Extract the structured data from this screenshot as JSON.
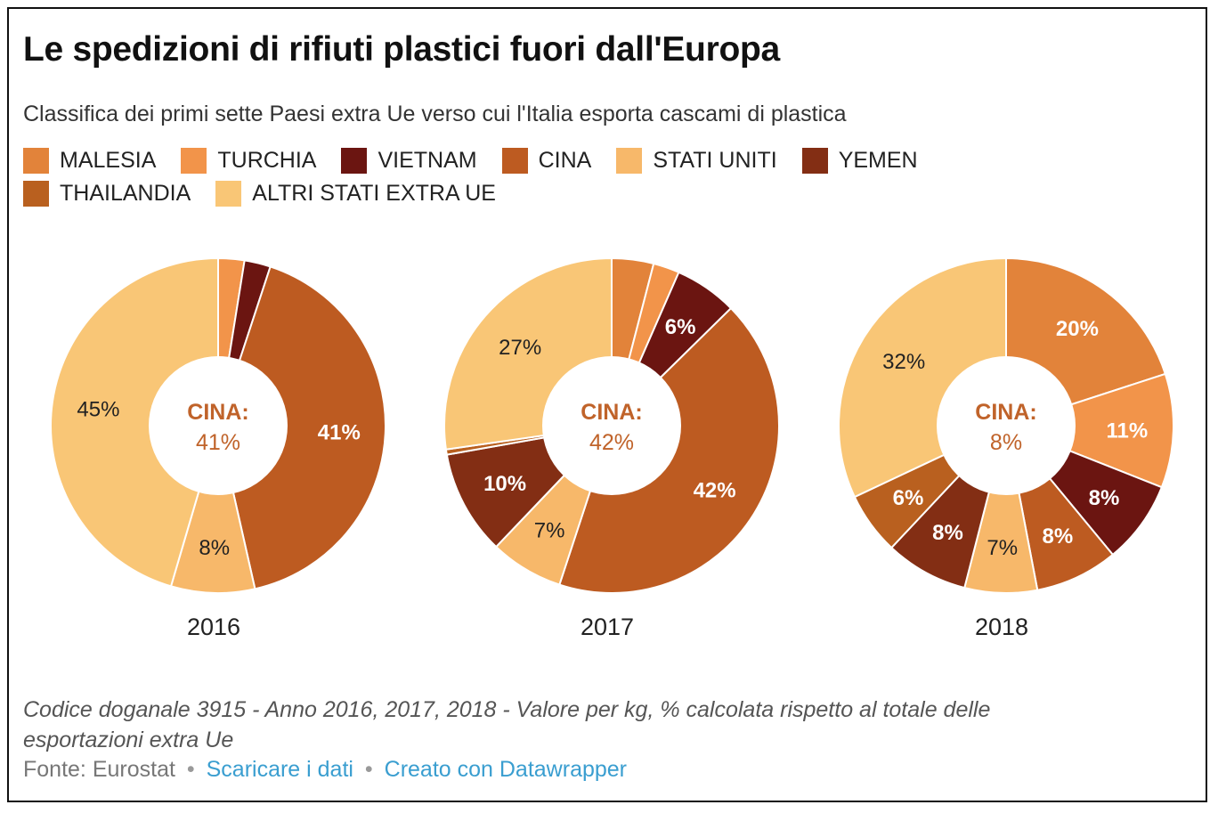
{
  "title": "Le spedizioni di rifiuti plastici fuori dall'Europa",
  "subtitle": "Classifica dei primi sette Paesi extra Ue verso cui l'Italia esporta cascami di plastica",
  "legend": [
    {
      "label": "MALESIA",
      "color": "#e2833a"
    },
    {
      "label": "TURCHIA",
      "color": "#f2944a"
    },
    {
      "label": "VIETNAM",
      "color": "#6b1511"
    },
    {
      "label": "CINA",
      "color": "#bd5b21"
    },
    {
      "label": "STATI UNITI",
      "color": "#f7b86a"
    },
    {
      "label": "YEMEN",
      "color": "#832e14"
    },
    {
      "label": "THAILANDIA",
      "color": "#b9601f"
    },
    {
      "label": "ALTRI STATI EXTRA UE",
      "color": "#f9c676"
    }
  ],
  "chart_data": [
    {
      "type": "pie",
      "year": "2016",
      "center_label": "CINA:",
      "center_value": "41%",
      "slices": [
        {
          "name": "MALESIA",
          "value": 0,
          "label": "",
          "color": "#e2833a"
        },
        {
          "name": "TURCHIA",
          "value": 2.5,
          "label": "",
          "color": "#f2944a"
        },
        {
          "name": "VIETNAM",
          "value": 2.5,
          "label": "",
          "color": "#6b1511"
        },
        {
          "name": "CINA",
          "value": 41,
          "label": "41%",
          "color": "#bd5b21",
          "label_color": "#ffffff"
        },
        {
          "name": "STATI UNITI",
          "value": 8,
          "label": "8%",
          "color": "#f7b86a",
          "label_color": "#222222"
        },
        {
          "name": "YEMEN",
          "value": 0,
          "label": "",
          "color": "#832e14"
        },
        {
          "name": "THAILANDIA",
          "value": 0,
          "label": "",
          "color": "#b9601f"
        },
        {
          "name": "ALTRI STATI EXTRA UE",
          "value": 45,
          "label": "45%",
          "color": "#f9c676",
          "label_color": "#222222"
        }
      ]
    },
    {
      "type": "pie",
      "year": "2017",
      "center_label": "CINA:",
      "center_value": "42%",
      "slices": [
        {
          "name": "MALESIA",
          "value": 4,
          "label": "",
          "color": "#e2833a"
        },
        {
          "name": "TURCHIA",
          "value": 2.5,
          "label": "",
          "color": "#f2944a"
        },
        {
          "name": "VIETNAM",
          "value": 6,
          "label": "6%",
          "color": "#6b1511",
          "label_color": "#ffffff"
        },
        {
          "name": "CINA",
          "value": 42,
          "label": "42%",
          "color": "#bd5b21",
          "label_color": "#ffffff"
        },
        {
          "name": "STATI UNITI",
          "value": 7,
          "label": "7%",
          "color": "#f7b86a",
          "label_color": "#222222"
        },
        {
          "name": "YEMEN",
          "value": 10,
          "label": "10%",
          "color": "#832e14",
          "label_color": "#ffffff"
        },
        {
          "name": "THAILANDIA",
          "value": 0.5,
          "label": "",
          "color": "#b9601f"
        },
        {
          "name": "ALTRI STATI EXTRA UE",
          "value": 27,
          "label": "27%",
          "color": "#f9c676",
          "label_color": "#222222"
        }
      ]
    },
    {
      "type": "pie",
      "year": "2018",
      "center_label": "CINA:",
      "center_value": "8%",
      "slices": [
        {
          "name": "MALESIA",
          "value": 20,
          "label": "20%",
          "color": "#e2833a",
          "label_color": "#ffffff"
        },
        {
          "name": "TURCHIA",
          "value": 11,
          "label": "11%",
          "color": "#f2944a",
          "label_color": "#ffffff"
        },
        {
          "name": "VIETNAM",
          "value": 8,
          "label": "8%",
          "color": "#6b1511",
          "label_color": "#ffffff"
        },
        {
          "name": "CINA",
          "value": 8,
          "label": "8%",
          "color": "#bd5b21",
          "label_color": "#ffffff"
        },
        {
          "name": "STATI UNITI",
          "value": 7,
          "label": "7%",
          "color": "#f7b86a",
          "label_color": "#222222"
        },
        {
          "name": "YEMEN",
          "value": 8,
          "label": "8%",
          "color": "#832e14",
          "label_color": "#ffffff"
        },
        {
          "name": "THAILANDIA",
          "value": 6,
          "label": "6%",
          "color": "#b9601f",
          "label_color": "#ffffff"
        },
        {
          "name": "ALTRI STATI EXTRA UE",
          "value": 32,
          "label": "32%",
          "color": "#f9c676",
          "label_color": "#222222"
        }
      ]
    }
  ],
  "center_label_color": "#c0632a",
  "note": "Codice doganale 3915 - Anno 2016, 2017, 2018 - Valore per kg, % calcolata rispetto al totale delle esportazioni extra Ue",
  "footer": {
    "source": "Fonte: Eurostat",
    "separator": "•",
    "download_link": "Scaricare i dati",
    "created_link": "Creato con Datawrapper",
    "link_color": "#3a9ed0"
  }
}
